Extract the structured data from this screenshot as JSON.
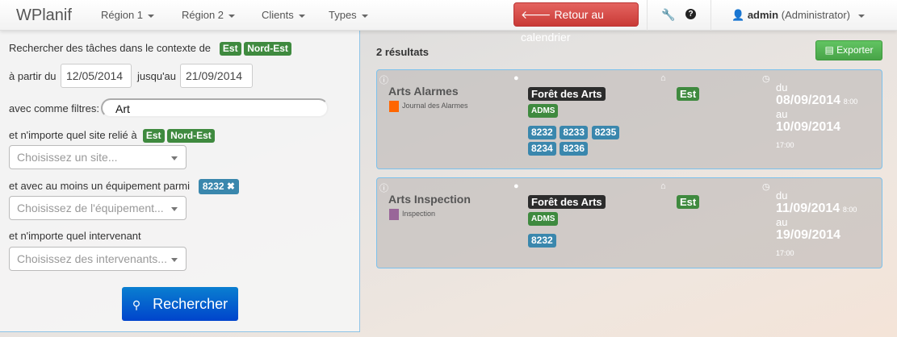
{
  "nav": {
    "brand": "WPlanif",
    "menus": [
      "Région 1",
      "Région 2",
      "Clients",
      "Types"
    ],
    "back_button": "Retour au calendrier",
    "user": "admin",
    "role": "(Administrator)"
  },
  "search": {
    "context_label": "Rechercher des tâches dans le contexte de",
    "context_badges": [
      "Est",
      "Nord-Est"
    ],
    "from_label": "à partir du",
    "from_value": "12/05/2014",
    "to_label": "jusqu'au",
    "to_value": "21/09/2014",
    "filter_label": "avec comme filtres:",
    "filter_value": "Art",
    "site_label": "et n'importe quel site relié à",
    "site_badges": [
      "Est",
      "Nord-Est"
    ],
    "site_placeholder": "Choisissez un site...",
    "equip_label": "et avec au moins un équipement parmi",
    "equip_badge": "8232",
    "equip_placeholder": "Choisissez de l'équipement...",
    "intervenant_label": "et n'importe quel intervenant",
    "intervenant_placeholder": "Choisissez des intervenants...",
    "search_button": "Rechercher"
  },
  "results": {
    "count_label": "2 résultats",
    "export_button": "Exporter",
    "items": [
      {
        "title": "Arts Alarmes",
        "type": "Journal des Alarmes",
        "type_color": "#ff6600",
        "site": "Forêt des Arts",
        "tag": "ADMS",
        "equipments": [
          "8232",
          "8233",
          "8235",
          "8234",
          "8236"
        ],
        "region": "Est",
        "du": "du",
        "start_date": "08/09/2014",
        "start_time": "8:00",
        "au": "au",
        "end_date": "10/09/2014",
        "end_time": "17:00"
      },
      {
        "title": "Arts Inspection",
        "type": "Inspection",
        "type_color": "#996699",
        "site": "Forêt des Arts",
        "tag": "ADMS",
        "equipments": [
          "8232"
        ],
        "region": "Est",
        "du": "du",
        "start_date": "11/09/2014",
        "start_time": "8:00",
        "au": "au",
        "end_date": "19/09/2014",
        "end_time": "17:00"
      }
    ]
  }
}
